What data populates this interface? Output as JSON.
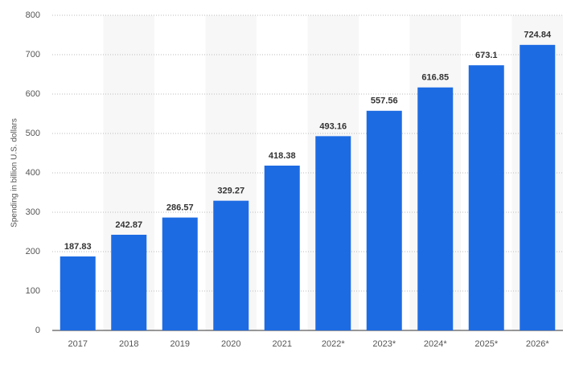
{
  "chart_data": {
    "type": "bar",
    "y_label": "Spending in billion U.S. dollars",
    "categories": [
      "2017",
      "2018",
      "2019",
      "2020",
      "2021",
      "2022*",
      "2023*",
      "2024*",
      "2025*",
      "2026*"
    ],
    "values": [
      187.83,
      242.87,
      286.57,
      329.27,
      418.38,
      493.16,
      557.56,
      616.85,
      673.1,
      724.84
    ],
    "color": "#1d6be3",
    "ylim": [
      0,
      800
    ],
    "yticks": [
      0,
      100,
      200,
      300,
      400,
      500,
      600,
      700,
      800
    ],
    "grid": true
  }
}
